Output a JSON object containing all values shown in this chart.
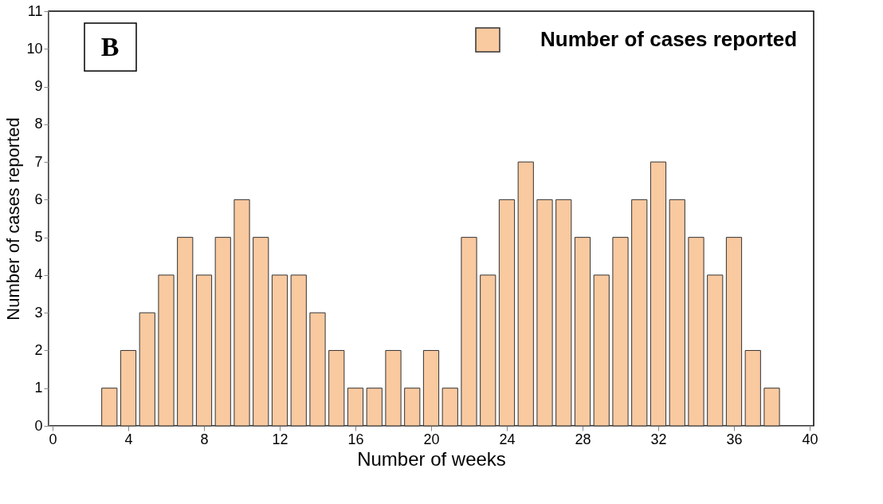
{
  "chart_data": {
    "type": "bar",
    "xlabel": "Number of weeks",
    "ylabel": "Number of cases reported",
    "annotations": [
      "B"
    ],
    "x": [
      3,
      4,
      5,
      6,
      7,
      8,
      9,
      10,
      11,
      12,
      13,
      14,
      15,
      16,
      17,
      18,
      19,
      20,
      21,
      22,
      23,
      24,
      25,
      26,
      27,
      28,
      29,
      30,
      31,
      32,
      33,
      34,
      35,
      36,
      37,
      38
    ],
    "series": [
      {
        "name": "Number of cases reported",
        "color": "#f9c9a0",
        "values": [
          1,
          2,
          3,
          4,
          5,
          4,
          5,
          6,
          5,
          4,
          4,
          3,
          2,
          1,
          1,
          2,
          1,
          2,
          1,
          5,
          4,
          6,
          7,
          6,
          6,
          5,
          4,
          5,
          6,
          7,
          6,
          5,
          4,
          5,
          2,
          1
        ]
      }
    ],
    "xlim": [
      0,
      40
    ],
    "xticks": [
      0,
      4,
      8,
      12,
      16,
      20,
      24,
      28,
      32,
      36,
      40
    ],
    "ylim": [
      0,
      11
    ],
    "yticks": [
      0,
      1,
      2,
      3,
      4,
      5,
      6,
      7,
      8,
      9,
      10,
      11
    ],
    "grid": false,
    "legend": "top right"
  }
}
